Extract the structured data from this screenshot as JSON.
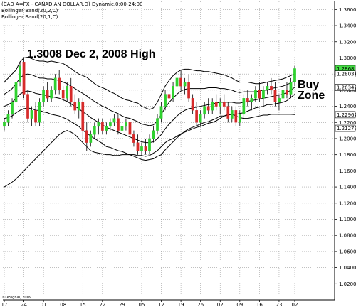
{
  "header": {
    "line1": "(CAD A=FX - CANADIAN DOLLAR,D) Dynamic,0:00-24:00",
    "line2": "Bollinger Band(20,2,C)",
    "line3": "Bollinger Band(20,1,C)"
  },
  "annotations": {
    "high_note": "1.3008 Dec 2, 2008 High",
    "buy_line1": "Buy",
    "buy_line2": "Zone"
  },
  "copyright": "© eSignal, 2009",
  "colors": {
    "up": "#2fd12f",
    "down": "#d62a2a",
    "band": "#000000",
    "grid": "#9a9a9a",
    "tag_up": "#44dd44",
    "tag_plain": "#ffffff"
  },
  "chart_data": {
    "type": "candlestick",
    "ylim": [
      1.0,
      1.37
    ],
    "y_ticks": [
      "1.3600",
      "1.3400",
      "1.3200",
      "1.3000",
      "1.2800",
      "1.2600",
      "1.2400",
      "1.2200",
      "1.2000",
      "1.1800",
      "1.1600",
      "1.1400",
      "1.1200",
      "1.1000",
      "1.0800",
      "1.0600",
      "1.0400",
      "1.0200"
    ],
    "x_ticks": [
      {
        "label": "17",
        "index": 0
      },
      {
        "label": "24",
        "index": 5
      },
      {
        "label": "01",
        "index": 10
      },
      {
        "label": "08",
        "index": 15
      },
      {
        "label": "15",
        "index": 20
      },
      {
        "label": "22",
        "index": 25
      },
      {
        "label": "29",
        "index": 30
      },
      {
        "label": "05",
        "index": 35
      },
      {
        "label": "12",
        "index": 40
      },
      {
        "label": "19",
        "index": 45
      },
      {
        "label": "26",
        "index": 50
      },
      {
        "label": "02",
        "index": 55
      },
      {
        "label": "09",
        "index": 60
      },
      {
        "label": "16",
        "index": 65
      },
      {
        "label": "23",
        "index": 70
      },
      {
        "label": "02",
        "index": 74
      }
    ],
    "price_tags": [
      {
        "label": "1.2868",
        "value": 1.2868,
        "style": "up"
      },
      {
        "label": "1.2803778",
        "value": 1.28,
        "style": "plain"
      },
      {
        "label": "1.2634780",
        "value": 1.2634,
        "style": "plain"
      },
      {
        "label": "1.2296749",
        "value": 1.2296,
        "style": "plain"
      },
      {
        "label": "1.2127771",
        "value": 1.2127,
        "style": "plain"
      }
    ],
    "candles": [
      [
        1.215,
        1.225,
        1.21,
        1.22
      ],
      [
        1.22,
        1.235,
        1.215,
        1.23
      ],
      [
        1.23,
        1.25,
        1.225,
        1.245
      ],
      [
        1.245,
        1.275,
        1.24,
        1.27
      ],
      [
        1.27,
        1.295,
        1.265,
        1.29
      ],
      [
        1.295,
        1.3008,
        1.25,
        1.255
      ],
      [
        1.255,
        1.26,
        1.22,
        1.225
      ],
      [
        1.225,
        1.24,
        1.215,
        1.235
      ],
      [
        1.235,
        1.245,
        1.215,
        1.22
      ],
      [
        1.22,
        1.25,
        1.215,
        1.245
      ],
      [
        1.245,
        1.265,
        1.24,
        1.26
      ],
      [
        1.26,
        1.27,
        1.245,
        1.25
      ],
      [
        1.25,
        1.265,
        1.245,
        1.26
      ],
      [
        1.26,
        1.28,
        1.255,
        1.275
      ],
      [
        1.275,
        1.285,
        1.255,
        1.26
      ],
      [
        1.26,
        1.265,
        1.245,
        1.25
      ],
      [
        1.25,
        1.27,
        1.245,
        1.265
      ],
      [
        1.265,
        1.275,
        1.24,
        1.245
      ],
      [
        1.245,
        1.255,
        1.23,
        1.235
      ],
      [
        1.235,
        1.25,
        1.225,
        1.245
      ],
      [
        1.245,
        1.25,
        1.2,
        1.21
      ],
      [
        1.21,
        1.22,
        1.185,
        1.195
      ],
      [
        1.195,
        1.21,
        1.19,
        1.205
      ],
      [
        1.205,
        1.22,
        1.2,
        1.215
      ],
      [
        1.215,
        1.225,
        1.205,
        1.22
      ],
      [
        1.22,
        1.225,
        1.205,
        1.21
      ],
      [
        1.21,
        1.22,
        1.205,
        1.215
      ],
      [
        1.215,
        1.225,
        1.21,
        1.22
      ],
      [
        1.22,
        1.23,
        1.215,
        1.225
      ],
      [
        1.225,
        1.23,
        1.205,
        1.21
      ],
      [
        1.21,
        1.22,
        1.205,
        1.215
      ],
      [
        1.215,
        1.225,
        1.21,
        1.22
      ],
      [
        1.22,
        1.225,
        1.2,
        1.205
      ],
      [
        1.205,
        1.21,
        1.19,
        1.195
      ],
      [
        1.195,
        1.205,
        1.18,
        1.185
      ],
      [
        1.185,
        1.195,
        1.178,
        1.19
      ],
      [
        1.19,
        1.2,
        1.18,
        1.185
      ],
      [
        1.185,
        1.205,
        1.18,
        1.2
      ],
      [
        1.2,
        1.215,
        1.195,
        1.21
      ],
      [
        1.21,
        1.23,
        1.205,
        1.225
      ],
      [
        1.225,
        1.245,
        1.22,
        1.24
      ],
      [
        1.24,
        1.26,
        1.235,
        1.255
      ],
      [
        1.255,
        1.27,
        1.245,
        1.25
      ],
      [
        1.25,
        1.27,
        1.245,
        1.265
      ],
      [
        1.265,
        1.28,
        1.26,
        1.275
      ],
      [
        1.275,
        1.285,
        1.26,
        1.265
      ],
      [
        1.265,
        1.275,
        1.255,
        1.27
      ],
      [
        1.27,
        1.28,
        1.245,
        1.25
      ],
      [
        1.25,
        1.255,
        1.23,
        1.235
      ],
      [
        1.235,
        1.245,
        1.215,
        1.22
      ],
      [
        1.22,
        1.235,
        1.215,
        1.23
      ],
      [
        1.23,
        1.245,
        1.225,
        1.24
      ],
      [
        1.24,
        1.25,
        1.23,
        1.235
      ],
      [
        1.235,
        1.25,
        1.23,
        1.245
      ],
      [
        1.245,
        1.255,
        1.235,
        1.24
      ],
      [
        1.24,
        1.25,
        1.23,
        1.245
      ],
      [
        1.245,
        1.255,
        1.235,
        1.24
      ],
      [
        1.24,
        1.245,
        1.22,
        1.225
      ],
      [
        1.225,
        1.24,
        1.22,
        1.235
      ],
      [
        1.235,
        1.24,
        1.215,
        1.22
      ],
      [
        1.22,
        1.235,
        1.215,
        1.23
      ],
      [
        1.23,
        1.255,
        1.225,
        1.25
      ],
      [
        1.25,
        1.26,
        1.24,
        1.245
      ],
      [
        1.245,
        1.255,
        1.235,
        1.25
      ],
      [
        1.25,
        1.265,
        1.245,
        1.26
      ],
      [
        1.26,
        1.27,
        1.245,
        1.25
      ],
      [
        1.25,
        1.265,
        1.24,
        1.26
      ],
      [
        1.26,
        1.27,
        1.255,
        1.265
      ],
      [
        1.265,
        1.275,
        1.255,
        1.26
      ],
      [
        1.26,
        1.27,
        1.24,
        1.245
      ],
      [
        1.245,
        1.255,
        1.235,
        1.25
      ],
      [
        1.25,
        1.265,
        1.245,
        1.26
      ],
      [
        1.26,
        1.27,
        1.25,
        1.255
      ],
      [
        1.255,
        1.275,
        1.25,
        1.27
      ],
      [
        1.27,
        1.29,
        1.265,
        1.2868
      ]
    ],
    "upper_band": [
      1.27,
      1.275,
      1.28,
      1.285,
      1.295,
      1.3,
      1.3008,
      1.299,
      1.297,
      1.296,
      1.296,
      1.295,
      1.296,
      1.295,
      1.294,
      1.293,
      1.29,
      1.287,
      1.283,
      1.28,
      1.278,
      1.276,
      1.272,
      1.268,
      1.265,
      1.263,
      1.261,
      1.258,
      1.256,
      1.253,
      1.25,
      1.248,
      1.247,
      1.245,
      1.244,
      1.24,
      1.238,
      1.236,
      1.238,
      1.245,
      1.255,
      1.265,
      1.272,
      1.278,
      1.282,
      1.285,
      1.286,
      1.286,
      1.285,
      1.284,
      1.284,
      1.283,
      1.283,
      1.282,
      1.281,
      1.28,
      1.279,
      1.277,
      1.275,
      1.272,
      1.27,
      1.27,
      1.27,
      1.269,
      1.268,
      1.268,
      1.269,
      1.27,
      1.271,
      1.272,
      1.273,
      1.274,
      1.276,
      1.278,
      1.2804
    ],
    "middle_band": [
      1.24,
      1.242,
      1.245,
      1.25,
      1.255,
      1.258,
      1.259,
      1.258,
      1.256,
      1.255,
      1.254,
      1.253,
      1.252,
      1.251,
      1.25,
      1.248,
      1.246,
      1.243,
      1.24,
      1.237,
      1.233,
      1.23,
      1.226,
      1.223,
      1.22,
      1.217,
      1.214,
      1.212,
      1.21,
      1.208,
      1.206,
      1.204,
      1.202,
      1.2,
      1.198,
      1.196,
      1.195,
      1.195,
      1.196,
      1.2,
      1.205,
      1.212,
      1.218,
      1.223,
      1.228,
      1.232,
      1.235,
      1.237,
      1.238,
      1.239,
      1.24,
      1.241,
      1.242,
      1.243,
      1.244,
      1.245,
      1.245,
      1.245,
      1.245,
      1.244,
      1.244,
      1.245,
      1.246,
      1.247,
      1.248,
      1.249,
      1.25,
      1.251,
      1.252,
      1.253,
      1.254,
      1.255,
      1.257,
      1.26,
      1.2635
    ],
    "lower_band": [
      1.14,
      1.143,
      1.146,
      1.15,
      1.155,
      1.16,
      1.165,
      1.17,
      1.175,
      1.18,
      1.185,
      1.19,
      1.195,
      1.2,
      1.205,
      1.208,
      1.21,
      1.208,
      1.205,
      1.2,
      1.195,
      1.19,
      1.185,
      1.183,
      1.182,
      1.181,
      1.18,
      1.18,
      1.179,
      1.179,
      1.18,
      1.18,
      1.18,
      1.18,
      1.179,
      1.179,
      1.178,
      1.179,
      1.182,
      1.185,
      1.19,
      1.195,
      1.198,
      1.2,
      1.203,
      1.206,
      1.208,
      1.21,
      1.212,
      1.214,
      1.215,
      1.217,
      1.219,
      1.22,
      1.222,
      1.225,
      1.228,
      1.23,
      1.23,
      1.228,
      1.226,
      1.225,
      1.225,
      1.226,
      1.227,
      1.228,
      1.229,
      1.229,
      1.23,
      1.23,
      1.23,
      1.23,
      1.23,
      1.23,
      1.2297
    ],
    "upper_band_1": [
      1.255,
      1.258,
      1.262,
      1.268,
      1.275,
      1.279,
      1.28,
      1.279,
      1.277,
      1.275,
      1.275,
      1.274,
      1.274,
      1.273,
      1.272,
      1.27,
      1.268,
      1.265,
      1.262,
      1.259,
      1.256,
      1.253,
      1.249,
      1.246,
      1.243,
      1.24,
      1.238,
      1.235,
      1.233,
      1.231,
      1.228,
      1.226,
      1.225,
      1.223,
      1.221,
      1.218,
      1.217,
      1.216,
      1.217,
      1.222,
      1.23,
      1.238,
      1.245,
      1.25,
      1.255,
      1.259,
      1.261,
      1.262,
      1.262,
      1.262,
      1.262,
      1.262,
      1.263,
      1.263,
      1.263,
      1.262,
      1.262,
      1.261,
      1.26,
      1.258,
      1.257,
      1.258,
      1.258,
      1.258,
      1.258,
      1.259,
      1.26,
      1.26,
      1.262,
      1.263,
      1.264,
      1.265,
      1.267,
      1.269,
      1.272
    ],
    "lower_band_1": [
      1.225,
      1.226,
      1.228,
      1.232,
      1.235,
      1.237,
      1.238,
      1.237,
      1.235,
      1.235,
      1.233,
      1.232,
      1.23,
      1.229,
      1.228,
      1.226,
      1.224,
      1.221,
      1.218,
      1.215,
      1.21,
      1.207,
      1.203,
      1.2,
      1.197,
      1.194,
      1.19,
      1.189,
      1.187,
      1.185,
      1.184,
      1.182,
      1.18,
      1.178,
      1.176,
      1.174,
      1.173,
      1.174,
      1.175,
      1.178,
      1.18,
      1.186,
      1.191,
      1.196,
      1.201,
      1.205,
      1.209,
      1.212,
      1.214,
      1.216,
      1.218,
      1.22,
      1.221,
      1.223,
      1.225,
      1.228,
      1.228,
      1.229,
      1.23,
      1.23,
      1.231,
      1.232,
      1.234,
      1.236,
      1.238,
      1.239,
      1.24,
      1.242,
      1.242,
      1.243,
      1.244,
      1.245,
      1.247,
      1.251,
      1.255
    ]
  }
}
